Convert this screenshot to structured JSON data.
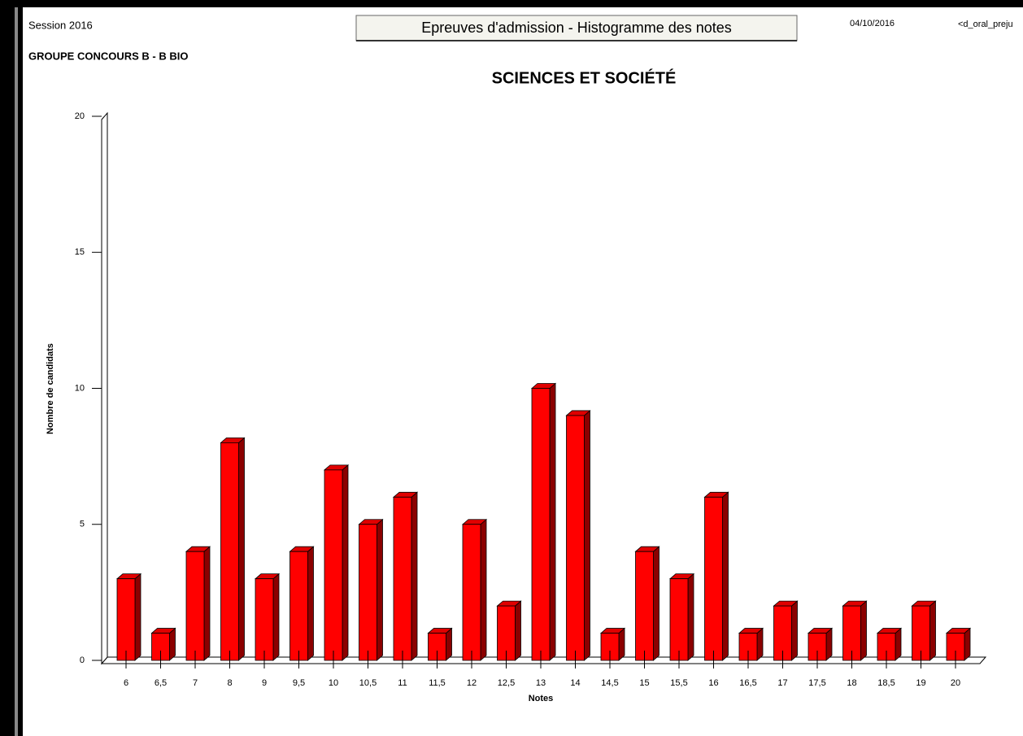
{
  "header": {
    "session": "Session 2016",
    "report_title": "Epreuves d'admission - Histogramme des notes",
    "date": "04/10/2016",
    "report_id": "<d_oral_preju",
    "group": "GROUPE CONCOURS B - B BIO"
  },
  "chart_data": {
    "type": "bar",
    "title": "SCIENCES ET SOCIÉTÉ",
    "xlabel": "Notes",
    "ylabel": "Nombre de candidats",
    "categories": [
      "6",
      "6,5",
      "7",
      "8",
      "9",
      "9,5",
      "10",
      "10,5",
      "11",
      "11,5",
      "12",
      "12,5",
      "13",
      "14",
      "14,5",
      "15",
      "15,5",
      "16",
      "16,5",
      "17",
      "17,5",
      "18",
      "18,5",
      "19",
      "20"
    ],
    "values": [
      3,
      1,
      4,
      8,
      3,
      4,
      7,
      5,
      6,
      1,
      5,
      2,
      10,
      9,
      1,
      4,
      3,
      6,
      1,
      2,
      1,
      2,
      1,
      2,
      1
    ],
    "color": "#ff0000",
    "ylim": [
      0,
      20
    ],
    "yticks": [
      0,
      5,
      10,
      15,
      20
    ]
  }
}
